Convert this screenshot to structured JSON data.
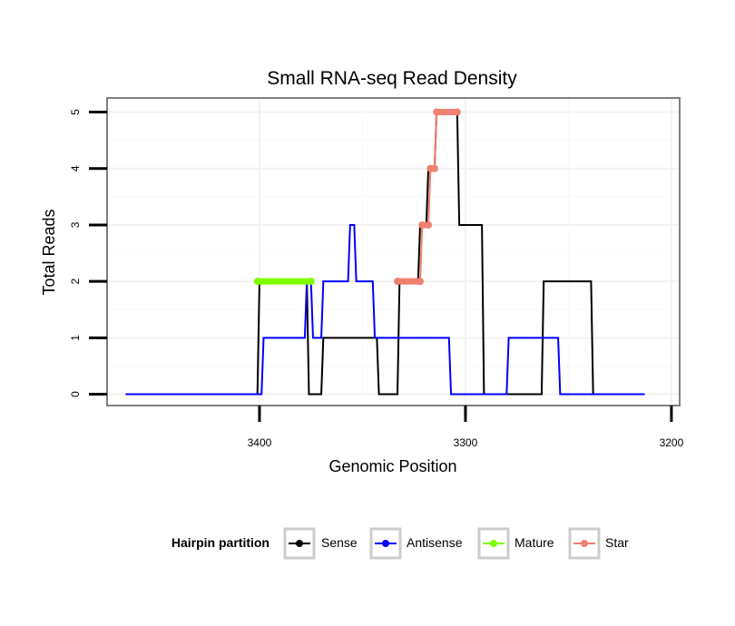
{
  "chart_data": {
    "type": "line",
    "title": "Small RNA-seq Read Density",
    "xlabel": "Genomic Position",
    "ylabel": "Total Reads",
    "x_reversed": true,
    "xlim": [
      3474,
      3196
    ],
    "ylim": [
      -0.2,
      5.25
    ],
    "xticks": [
      3400,
      3300,
      3200
    ],
    "yticks": [
      0,
      1,
      2,
      3,
      4,
      5
    ],
    "grid": true,
    "legend": {
      "title": "Hairpin partition",
      "placement": "bottom",
      "entries": [
        "Sense",
        "Antisense",
        "Mature",
        "Star"
      ]
    },
    "colors": {
      "Sense": "#000000",
      "Antisense": "#0000ff",
      "Mature": "#7fff00",
      "Star": "#f08070"
    },
    "series": [
      {
        "name": "Sense",
        "points": [
          [
            3465,
            0
          ],
          [
            3401,
            0
          ],
          [
            3400,
            2
          ],
          [
            3377,
            2
          ],
          [
            3376,
            0
          ],
          [
            3370,
            0
          ],
          [
            3369,
            1
          ],
          [
            3343,
            1
          ],
          [
            3342,
            0
          ],
          [
            3333,
            0
          ],
          [
            3332,
            2
          ],
          [
            3323,
            2
          ],
          [
            3322,
            3
          ],
          [
            3319,
            3
          ],
          [
            3318,
            4
          ],
          [
            3315,
            4
          ],
          [
            3314,
            5
          ],
          [
            3304,
            5
          ],
          [
            3303,
            3
          ],
          [
            3292,
            3
          ],
          [
            3291,
            0
          ],
          [
            3263,
            0
          ],
          [
            3262,
            2
          ],
          [
            3239,
            2
          ],
          [
            3238,
            0
          ],
          [
            3213,
            0
          ]
        ]
      },
      {
        "name": "Antisense",
        "points": [
          [
            3465,
            0
          ],
          [
            3399,
            0
          ],
          [
            3398,
            1
          ],
          [
            3378,
            1
          ],
          [
            3377,
            2
          ],
          [
            3375,
            2
          ],
          [
            3374,
            1
          ],
          [
            3370,
            1
          ],
          [
            3369,
            2
          ],
          [
            3357,
            2
          ],
          [
            3356,
            3
          ],
          [
            3354,
            3
          ],
          [
            3353,
            2
          ],
          [
            3345,
            2
          ],
          [
            3344,
            1
          ],
          [
            3308,
            1
          ],
          [
            3307,
            0
          ],
          [
            3280,
            0
          ],
          [
            3279,
            1
          ],
          [
            3255,
            1
          ],
          [
            3254,
            0
          ],
          [
            3213,
            0
          ]
        ]
      },
      {
        "name": "Mature",
        "points": [
          [
            3401,
            2
          ],
          [
            3375,
            2
          ]
        ]
      },
      {
        "name": "Star",
        "points": [
          [
            3333,
            2
          ],
          [
            3322,
            2
          ],
          [
            3321,
            3
          ],
          [
            3318,
            3
          ],
          [
            3317,
            4
          ],
          [
            3315,
            4
          ],
          [
            3314,
            5
          ],
          [
            3304,
            5
          ]
        ]
      }
    ]
  }
}
